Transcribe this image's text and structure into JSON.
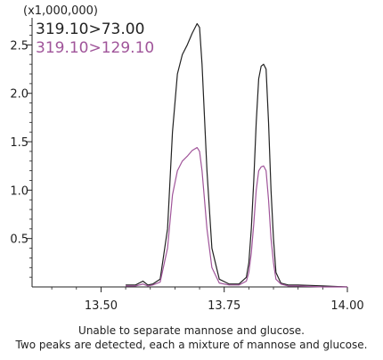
{
  "chart_data": {
    "type": "line",
    "y_multiplier_label": "(x1,000,000)",
    "x_ticks": [
      "13.50",
      "13.75",
      "14.00"
    ],
    "x_tick_values": [
      13.5,
      13.75,
      14.0
    ],
    "y_ticks": [
      "0.5",
      "1.0",
      "1.5",
      "2.0",
      "2.5"
    ],
    "y_tick_values": [
      0.5,
      1.0,
      1.5,
      2.0,
      2.5
    ],
    "xlim": [
      13.36,
      14.0
    ],
    "ylim": [
      0.0,
      2.78
    ],
    "legend_position": "top-left",
    "grid": false,
    "series": [
      {
        "name": "319.10>73.00",
        "color": "#222222",
        "x": [
          13.55,
          13.57,
          13.585,
          13.595,
          13.605,
          13.62,
          13.635,
          13.645,
          13.655,
          13.665,
          13.675,
          13.685,
          13.695,
          13.7,
          13.705,
          13.715,
          13.725,
          13.74,
          13.76,
          13.78,
          13.795,
          13.8,
          13.805,
          13.81,
          13.815,
          13.82,
          13.825,
          13.83,
          13.835,
          13.84,
          13.845,
          13.85,
          13.855,
          13.865,
          13.88,
          13.9,
          13.95,
          14.0
        ],
        "y": [
          0.02,
          0.02,
          0.06,
          0.02,
          0.03,
          0.08,
          0.6,
          1.6,
          2.2,
          2.4,
          2.5,
          2.62,
          2.72,
          2.68,
          2.3,
          1.2,
          0.4,
          0.08,
          0.03,
          0.03,
          0.1,
          0.25,
          0.6,
          1.1,
          1.7,
          2.15,
          2.28,
          2.3,
          2.25,
          1.7,
          1.0,
          0.5,
          0.15,
          0.04,
          0.02,
          0.02,
          0.01,
          0.0
        ]
      },
      {
        "name": "319.10>129.10",
        "color": "#a0559a",
        "x": [
          13.55,
          13.57,
          13.585,
          13.595,
          13.605,
          13.62,
          13.635,
          13.645,
          13.655,
          13.665,
          13.675,
          13.685,
          13.695,
          13.7,
          13.705,
          13.715,
          13.725,
          13.74,
          13.76,
          13.78,
          13.795,
          13.8,
          13.805,
          13.81,
          13.815,
          13.82,
          13.825,
          13.83,
          13.835,
          13.84,
          13.845,
          13.85,
          13.855,
          13.865,
          13.88,
          13.9,
          13.95,
          14.0
        ],
        "y": [
          0.01,
          0.01,
          0.03,
          0.01,
          0.02,
          0.05,
          0.4,
          0.95,
          1.2,
          1.3,
          1.35,
          1.41,
          1.44,
          1.4,
          1.2,
          0.6,
          0.2,
          0.04,
          0.02,
          0.02,
          0.06,
          0.15,
          0.35,
          0.65,
          1.0,
          1.2,
          1.24,
          1.25,
          1.2,
          0.9,
          0.5,
          0.25,
          0.08,
          0.03,
          0.01,
          0.01,
          0.0,
          0.0
        ]
      }
    ],
    "caption_lines": [
      "Unable to separate mannose and glucose.",
      "Two peaks are detected, each a mixture of mannose and glucose."
    ]
  }
}
